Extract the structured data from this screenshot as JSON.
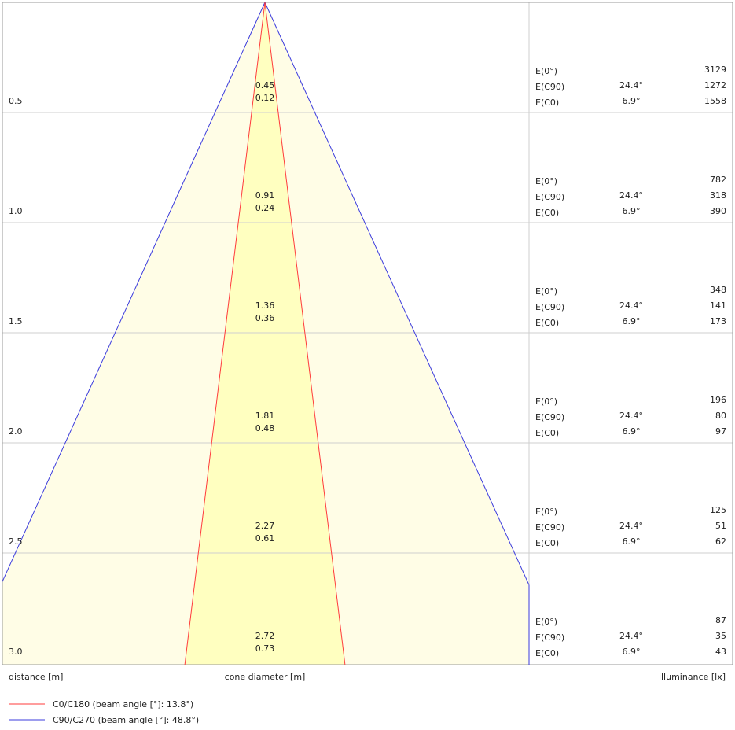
{
  "chart_data": {
    "type": "cone_diagram",
    "xlabel": "distance [m]",
    "center_label": "cone diameter [m]",
    "right_label": "illuminance [lx]",
    "series": [
      {
        "name": "C0/C180 (beam angle [°]: 13.8°)",
        "beam_angle": 13.8,
        "color": "#ff3b3b"
      },
      {
        "name": "C90/C270 (beam angle [°]: 48.8°)",
        "beam_angle": 48.8,
        "color": "#3b3bdd"
      }
    ],
    "rows": [
      {
        "distance": "0.5",
        "d_c90": "0.45",
        "d_c0": "0.12",
        "e_labels": [
          "E(0°)",
          "E(C90)",
          "E(C0)"
        ],
        "angle_c90": "24.4°",
        "angle_c0": "6.9°",
        "lux": [
          "3129",
          "1272",
          "1558"
        ]
      },
      {
        "distance": "1.0",
        "d_c90": "0.91",
        "d_c0": "0.24",
        "e_labels": [
          "E(0°)",
          "E(C90)",
          "E(C0)"
        ],
        "angle_c90": "24.4°",
        "angle_c0": "6.9°",
        "lux": [
          "782",
          "318",
          "390"
        ]
      },
      {
        "distance": "1.5",
        "d_c90": "1.36",
        "d_c0": "0.36",
        "e_labels": [
          "E(0°)",
          "E(C90)",
          "E(C0)"
        ],
        "angle_c90": "24.4°",
        "angle_c0": "6.9°",
        "lux": [
          "348",
          "141",
          "173"
        ]
      },
      {
        "distance": "2.0",
        "d_c90": "1.81",
        "d_c0": "0.48",
        "e_labels": [
          "E(0°)",
          "E(C90)",
          "E(C0)"
        ],
        "angle_c90": "24.4°",
        "angle_c0": "6.9°",
        "lux": [
          "196",
          "80",
          "97"
        ]
      },
      {
        "distance": "2.5",
        "d_c90": "2.27",
        "d_c0": "0.61",
        "e_labels": [
          "E(0°)",
          "E(C90)",
          "E(C0)"
        ],
        "angle_c90": "24.4°",
        "angle_c0": "6.9°",
        "lux": [
          "125",
          "51",
          "62"
        ]
      },
      {
        "distance": "3.0",
        "d_c90": "2.72",
        "d_c0": "0.73",
        "e_labels": [
          "E(0°)",
          "E(C90)",
          "E(C0)"
        ],
        "angle_c90": "24.4°",
        "angle_c0": "6.9°",
        "lux": [
          "87",
          "35",
          "43"
        ]
      }
    ],
    "colors": {
      "outer_fill": "#fffde6",
      "inner_fill": "#ffffc0",
      "grid": "#cfcfcf",
      "frame": "#9a9a9a"
    }
  }
}
